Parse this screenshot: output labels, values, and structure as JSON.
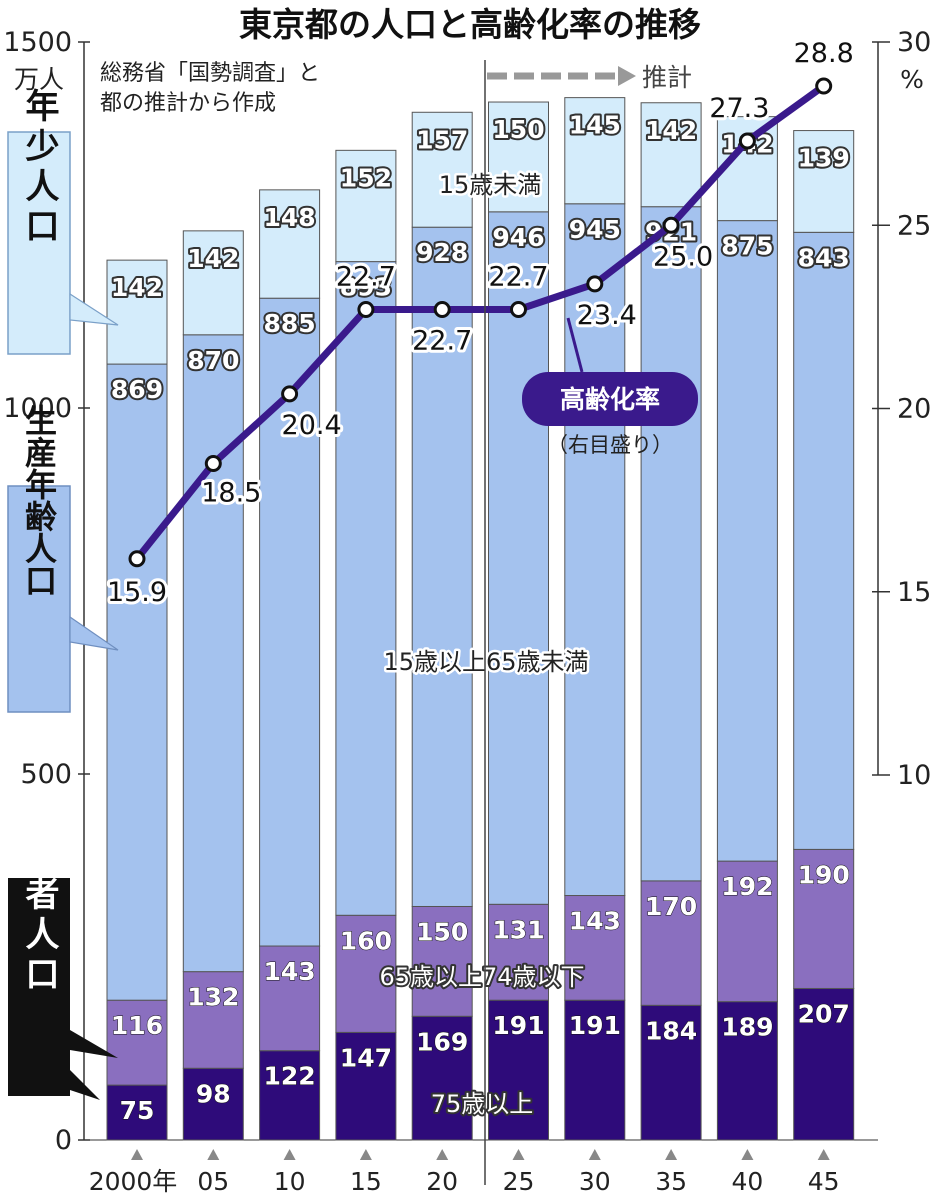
{
  "title": "東京都の人口と高齢化率の推移",
  "source_note": [
    "総務省「国勢調査」と",
    "都の推計から作成"
  ],
  "estimate_label": "推計",
  "colors": {
    "young": "#d4ecfb",
    "working": "#a4c2ee",
    "old65_74": "#8a6fbf",
    "old75": "#2e0b7a",
    "rate_line": "#3a1a8c"
  },
  "side_labels": {
    "young": "年少人口",
    "working": "生産年齢人口",
    "elderly": "高齢者人口"
  },
  "band_labels": {
    "young": "15歳未満",
    "working": "15歳以上65歳未満",
    "old65_74": "65歳以上74歳以下",
    "old75": "75歳以上"
  },
  "legend": {
    "label": "高齢化率",
    "sub": "（右目盛り）"
  },
  "chart_data": {
    "type": "bar",
    "stacked": true,
    "categories": [
      "2000年",
      "05",
      "10",
      "15",
      "20",
      "25",
      "30",
      "35",
      "40",
      "45"
    ],
    "left_axis": {
      "unit": "万人",
      "ylim": [
        0,
        1500
      ],
      "ticks": [
        "0",
        "500",
        "1000",
        "1500"
      ]
    },
    "right_axis": {
      "unit": "%",
      "ylim": [
        10,
        30
      ],
      "ticks": [
        "10",
        "15",
        "20",
        "25",
        "30"
      ]
    },
    "series": [
      {
        "name": "75歳以上",
        "key": "old75",
        "values": [
          75,
          98,
          122,
          147,
          169,
          191,
          191,
          184,
          189,
          207
        ]
      },
      {
        "name": "65歳以上74歳以下",
        "key": "old65_74",
        "values": [
          116,
          132,
          143,
          160,
          150,
          131,
          143,
          170,
          192,
          190
        ]
      },
      {
        "name": "15歳以上65歳未満",
        "key": "working",
        "values": [
          869,
          870,
          885,
          893,
          928,
          946,
          945,
          921,
          875,
          843
        ]
      },
      {
        "name": "15歳未満",
        "key": "young",
        "values": [
          142,
          142,
          148,
          152,
          157,
          150,
          145,
          142,
          142,
          139
        ]
      }
    ],
    "line": {
      "name": "高齢化率",
      "axis": "right",
      "values": [
        15.9,
        18.5,
        20.4,
        22.7,
        22.7,
        22.7,
        23.4,
        25.0,
        27.3,
        28.8
      ],
      "labels": [
        "15.9",
        "18.5",
        "20.4",
        "22.7",
        "22.7",
        "22.7",
        "23.4",
        "25.0",
        "27.3",
        "28.8"
      ]
    },
    "estimate_from_index": 5
  }
}
